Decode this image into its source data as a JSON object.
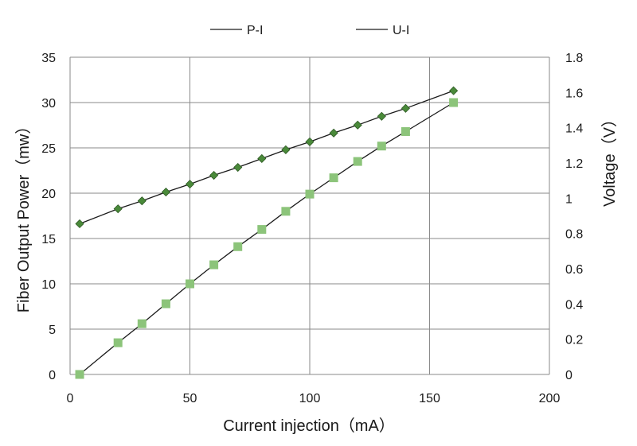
{
  "chart_data": {
    "type": "line",
    "title": "",
    "xlabel": "Current injection（mA）",
    "ylabel": "Fiber Output Power（mw）",
    "y2label": "Voltage（V）",
    "xlim": [
      0,
      200
    ],
    "ylim": [
      0,
      35
    ],
    "y2lim": [
      0,
      1.8
    ],
    "x_ticks": [
      0,
      50,
      100,
      150,
      200
    ],
    "y_ticks": [
      0,
      5,
      10,
      15,
      20,
      25,
      30,
      35
    ],
    "y2_ticks": [
      0,
      0.2,
      0.4,
      0.6,
      0.8,
      1,
      1.2,
      1.4,
      1.6,
      1.8
    ],
    "grid": true,
    "legend_position": "top",
    "series": [
      {
        "name": "P-I",
        "axis": "left",
        "marker": "square",
        "color": "#8cc47a",
        "x": [
          4,
          20,
          30,
          40,
          50,
          60,
          70,
          80,
          90,
          100,
          110,
          120,
          130,
          140,
          160
        ],
        "y": [
          0,
          3.5,
          5.6,
          7.8,
          10.0,
          12.1,
          14.1,
          16.0,
          18.0,
          19.9,
          21.7,
          23.5,
          25.2,
          26.8,
          30.0
        ]
      },
      {
        "name": "U-I",
        "axis": "right",
        "marker": "diamond",
        "color": "#4a8a3a",
        "x": [
          4,
          20,
          30,
          40,
          50,
          60,
          70,
          80,
          90,
          100,
          110,
          120,
          130,
          140,
          160
        ],
        "y": [
          0.855,
          0.94,
          0.985,
          1.035,
          1.08,
          1.13,
          1.175,
          1.225,
          1.275,
          1.32,
          1.37,
          1.415,
          1.465,
          1.51,
          1.61
        ]
      }
    ]
  }
}
